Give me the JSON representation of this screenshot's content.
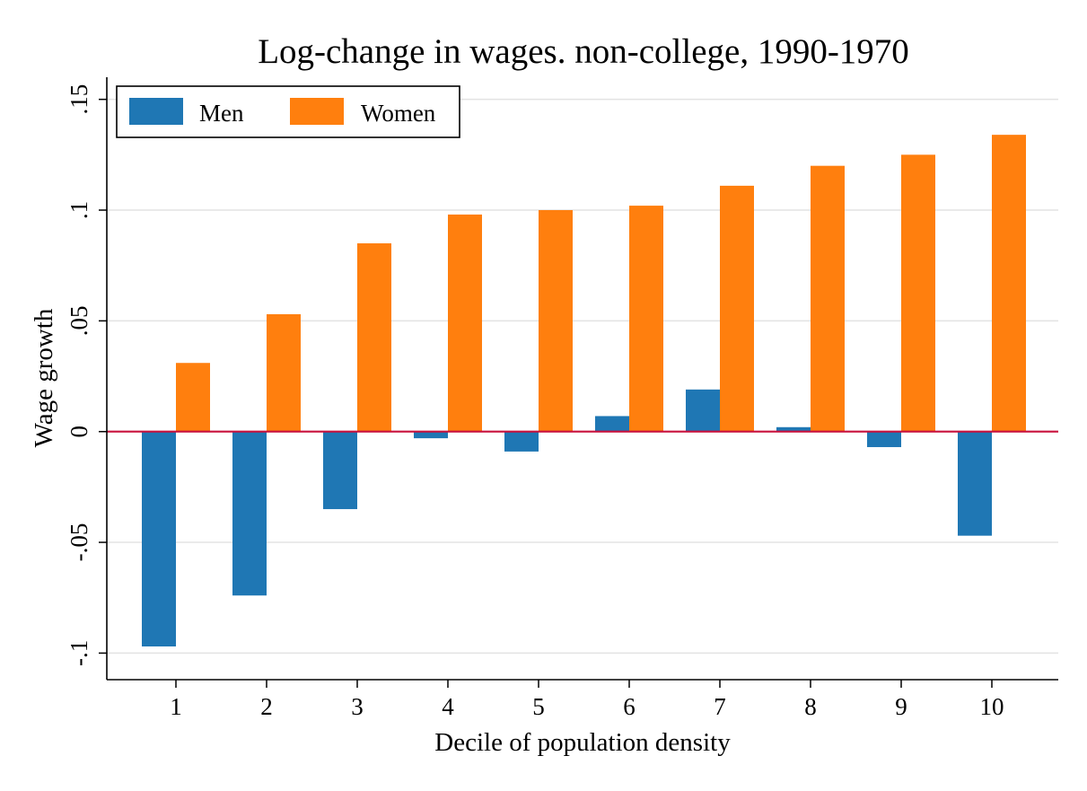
{
  "chart_data": {
    "type": "bar",
    "title": "Log-change in wages. non-college, 1990-1970",
    "xlabel": "Decile of population density",
    "ylabel": "Wage growth",
    "categories": [
      "1",
      "2",
      "3",
      "4",
      "5",
      "6",
      "7",
      "8",
      "9",
      "10"
    ],
    "series": [
      {
        "name": "Men",
        "color": "#1f77b4",
        "values": [
          -0.097,
          -0.074,
          -0.035,
          -0.003,
          -0.009,
          0.007,
          0.019,
          0.002,
          -0.007,
          -0.047
        ]
      },
      {
        "name": "Women",
        "color": "#ff7f0e",
        "values": [
          0.031,
          0.053,
          0.085,
          0.098,
          0.1,
          0.102,
          0.111,
          0.12,
          0.125,
          0.134
        ]
      }
    ],
    "ylim": [
      -0.112,
      0.16
    ],
    "yticks": [
      {
        "value": -0.1,
        "label": "-.1"
      },
      {
        "value": -0.05,
        "label": "-.05"
      },
      {
        "value": 0,
        "label": "0"
      },
      {
        "value": 0.05,
        "label": ".05"
      },
      {
        "value": 0.1,
        "label": ".1"
      },
      {
        "value": 0.15,
        "label": ".15"
      }
    ],
    "reference_line": {
      "value": 0,
      "color": "#c8103c"
    },
    "grid": true,
    "legend_position": "top-left"
  }
}
